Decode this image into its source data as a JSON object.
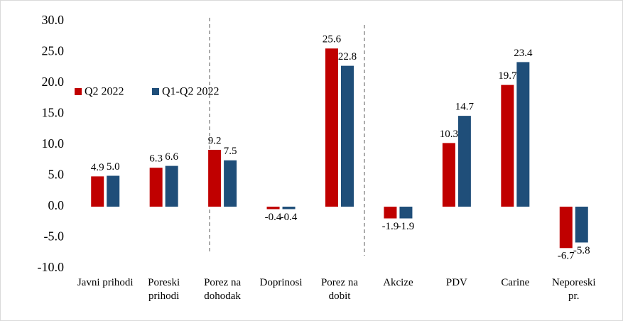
{
  "chart_data": {
    "type": "bar",
    "categories": [
      "Javni prihodi",
      "Poreski prihodi",
      "Porez na dohodak",
      "Doprinosi",
      "Porez na dobit",
      "Akcize",
      "PDV",
      "Carine",
      "Neporeski pr."
    ],
    "series": [
      {
        "name": "Q2 2022",
        "color": "#c00000",
        "values": [
          4.9,
          6.3,
          9.2,
          -0.4,
          25.6,
          -1.9,
          10.3,
          19.7,
          -6.7
        ],
        "value_labels": [
          "4.9",
          "6.3",
          "9.2",
          "-0.4",
          "25.6",
          "-1.9",
          "10.3",
          "19.7",
          "-6.7"
        ]
      },
      {
        "name": "Q1-Q2 2022",
        "color": "#1f4e79",
        "values": [
          5,
          6.6,
          7.5,
          -0.4,
          22.8,
          -1.9,
          14.7,
          23.4,
          -5.8
        ],
        "value_labels": [
          "5.0",
          "6.6",
          "7.5",
          "-0.4",
          "22.8",
          "-1.9",
          "14.7",
          "23.4",
          "-5.8"
        ]
      }
    ],
    "ylim": [
      -10,
      30
    ],
    "yticks": [
      {
        "value": -10,
        "label": "-10.0"
      },
      {
        "value": -5,
        "label": "-5.0"
      },
      {
        "value": 0,
        "label": "0.0"
      },
      {
        "value": 5,
        "label": "5.0"
      },
      {
        "value": 10,
        "label": "10.0"
      },
      {
        "value": 15,
        "label": "15.0"
      },
      {
        "value": 20,
        "label": "20.0"
      },
      {
        "value": 25,
        "label": "25.0"
      },
      {
        "value": 30,
        "label": "30.0"
      }
    ],
    "legend": "upper left"
  }
}
